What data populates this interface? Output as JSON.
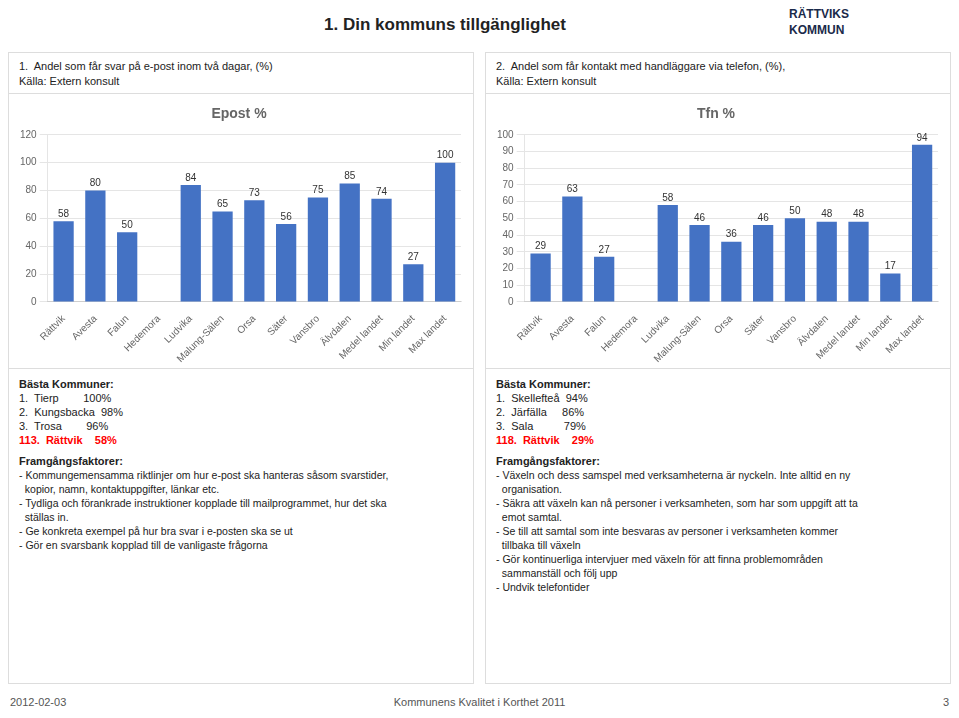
{
  "title": "1. Din kommuns tillgänglighet",
  "annotations": [
    "RÄTTVIKS",
    "KOMMUN",
    "2012-02-03",
    "Kommunens Kvalitet i Korthet 2011",
    "3"
  ],
  "chart_data": [
    {
      "type": "bar",
      "title": "Epost %",
      "subtitle": [
        "1.  Andel som får svar på e-post inom två dagar, (%)",
        "Källa: Extern konsult"
      ],
      "categories": [
        "Rättvik",
        "Avesta",
        "Falun",
        "Hedemora",
        "Ludvika",
        "Malung-Sälen",
        "Orsa",
        "Säter",
        "Vansbro",
        "Älvdalen",
        "Medel landet",
        "Min landet",
        "Max landet"
      ],
      "values": [
        58,
        80,
        50,
        null,
        84,
        65,
        73,
        56,
        75,
        85,
        74,
        27,
        100
      ],
      "color": "#4472c4",
      "ylim": [
        0,
        120
      ],
      "yticks": [
        0,
        20,
        40,
        60,
        80,
        100,
        120
      ],
      "grid": true,
      "data_labels": true,
      "annotations": [
        "Bästa Kommuner:",
        "1.  Tierp        100%",
        "2.  Kungsbacka  98%",
        "3.  Trosa        96%",
        {
          "text": "113.  Rättvik    58%",
          "color": "#ff0000"
        },
        "Framgångsfaktorer:",
        "- Kommungemensamma riktlinjer om hur e-post ska hanteras såsom svarstider,",
        "  kopior, namn, kontaktuppgifter, länkar etc.",
        "- Tydliga och förankrade instruktioner kopplade till mailprogrammet, hur det ska",
        "  ställas in.",
        "- Ge konkreta exempel på hur bra svar i e-posten ska se ut",
        "- Gör en svarsbank kopplad till de vanligaste frågorna"
      ]
    },
    {
      "type": "bar",
      "title": "Tfn %",
      "subtitle": [
        "2.  Andel som får kontakt med handläggare via telefon, (%),",
        "Källa: Extern konsult"
      ],
      "categories": [
        "Rättvik",
        "Avesta",
        "Falun",
        "Hedemora",
        "Ludvika",
        "Malung-Sälen",
        "Orsa",
        "Säter",
        "Vansbro",
        "Älvdalen",
        "Medel landet",
        "Min landet",
        "Max landet"
      ],
      "values": [
        29,
        63,
        27,
        null,
        58,
        46,
        36,
        46,
        50,
        48,
        48,
        17,
        94
      ],
      "color": "#4472c4",
      "ylim": [
        0,
        100
      ],
      "yticks": [
        0,
        10,
        20,
        30,
        40,
        50,
        60,
        70,
        80,
        90,
        100
      ],
      "grid": true,
      "data_labels": true,
      "annotations": [
        "Bästa Kommuner:",
        "1.  Skellefteå  94%",
        "2.  Järfälla     86%",
        "3.  Sala          79%",
        {
          "text": "118.  Rättvik    29%",
          "color": "#ff0000"
        },
        "Framgångsfaktorer:",
        "- Växeln och dess samspel med verksamheterna är nyckeln. Inte alltid en ny",
        "  organisation.",
        "- Säkra att växeln kan nå personer i verksamheten, som har som uppgift att ta",
        "  emot samtal.",
        "- Se till att samtal som inte besvaras av personer i verksamheten kommer",
        "  tillbaka till växeln",
        "- Gör kontinuerliga intervjuer med växeln för att finna problemområden",
        "  sammanställ och följ upp",
        "- Undvik telefontider"
      ]
    }
  ]
}
